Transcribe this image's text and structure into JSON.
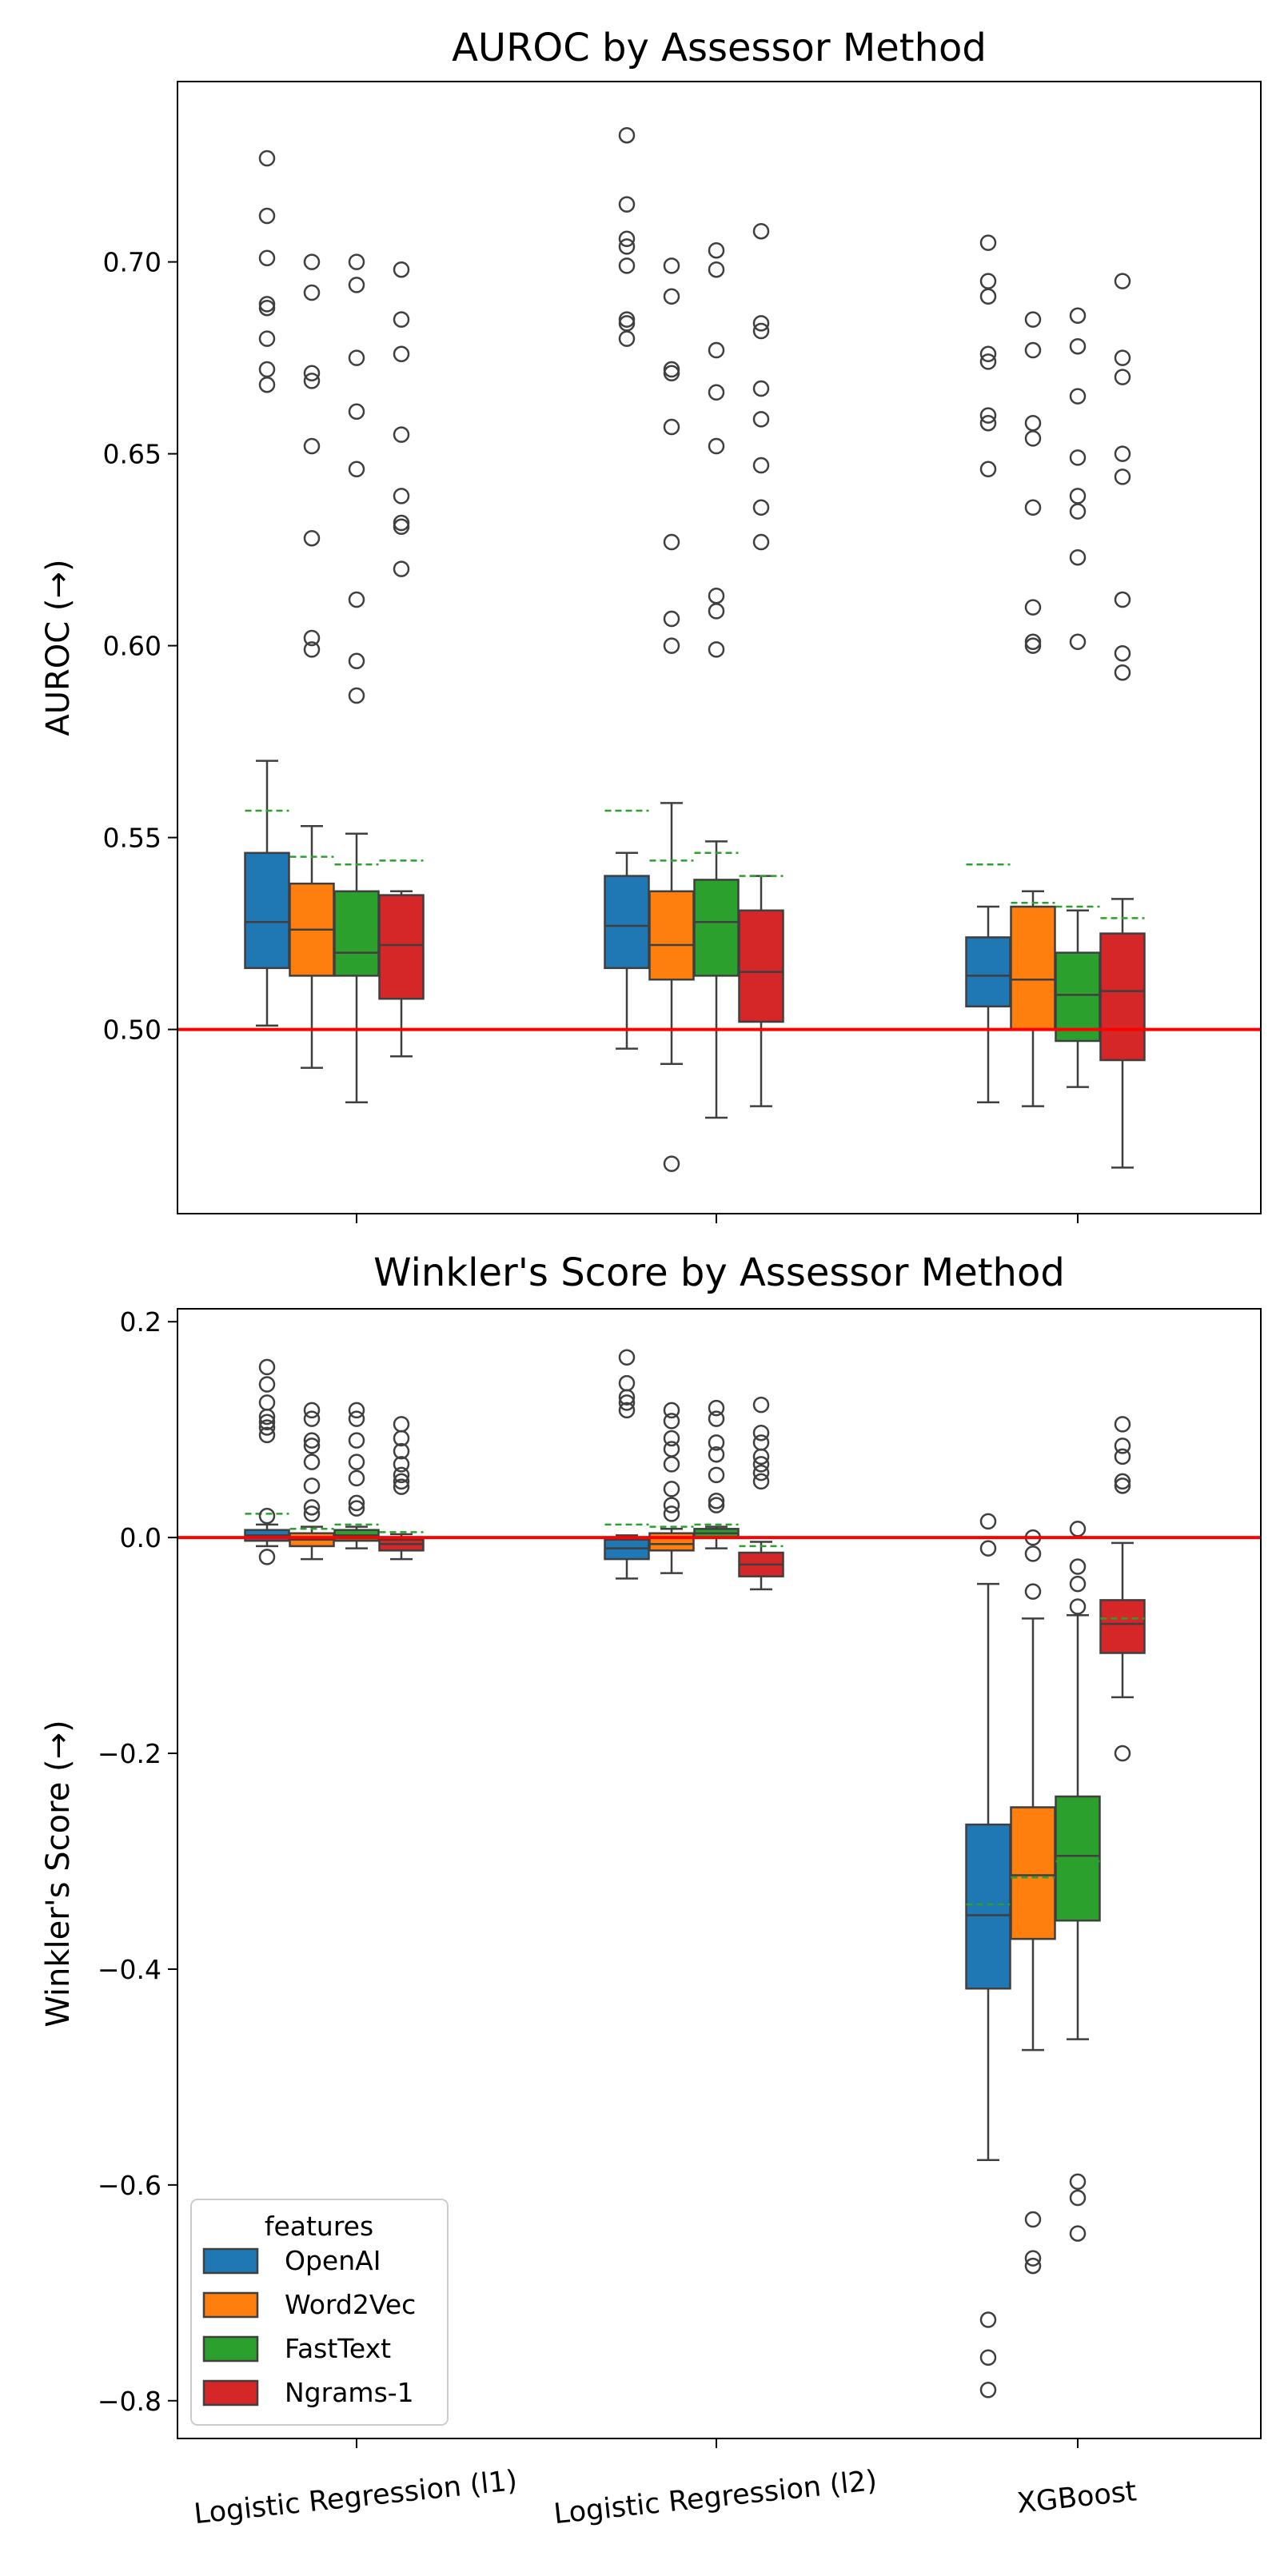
{
  "chart_data": [
    {
      "type": "box",
      "title": "AUROC by Assessor Method",
      "xlabel": "",
      "ylabel": "AUROC (→)",
      "ylim": [
        0.452,
        0.747
      ],
      "yticks": [
        0.5,
        0.55,
        0.6,
        0.65,
        0.7
      ],
      "ytick_labels": [
        "0.50",
        "0.55",
        "0.60",
        "0.65",
        "0.70"
      ],
      "reference_line": 0.5,
      "categories": [
        "Logistic Regression (l1)",
        "Logistic Regression (l2)",
        "XGBoost"
      ],
      "series": [
        {
          "name": "OpenAI",
          "color": "#1f77b4",
          "boxes": [
            {
              "whislo": 0.501,
              "q1": 0.516,
              "med": 0.528,
              "q3": 0.546,
              "whishi": 0.57,
              "mean": 0.557,
              "fliers": [
                0.727,
                0.712,
                0.701,
                0.689,
                0.688,
                0.68,
                0.672,
                0.668
              ]
            },
            {
              "whislo": 0.495,
              "q1": 0.516,
              "med": 0.527,
              "q3": 0.54,
              "whishi": 0.546,
              "mean": 0.557,
              "fliers": [
                0.733,
                0.715,
                0.706,
                0.704,
                0.699,
                0.685,
                0.684,
                0.68
              ]
            },
            {
              "whislo": 0.481,
              "q1": 0.506,
              "med": 0.514,
              "q3": 0.524,
              "whishi": 0.532,
              "mean": 0.543,
              "fliers": [
                0.705,
                0.695,
                0.691,
                0.676,
                0.674,
                0.66,
                0.658,
                0.646
              ]
            }
          ]
        },
        {
          "name": "Word2Vec",
          "color": "#ff7f0e",
          "boxes": [
            {
              "whislo": 0.49,
              "q1": 0.514,
              "med": 0.526,
              "q3": 0.538,
              "whishi": 0.553,
              "mean": 0.545,
              "fliers": [
                0.7,
                0.692,
                0.671,
                0.669,
                0.652,
                0.628,
                0.602,
                0.599
              ]
            },
            {
              "whislo": 0.491,
              "q1": 0.513,
              "med": 0.522,
              "q3": 0.536,
              "whishi": 0.559,
              "mean": 0.544,
              "fliers": [
                0.699,
                0.691,
                0.672,
                0.671,
                0.657,
                0.627,
                0.607,
                0.6,
                0.465
              ]
            },
            {
              "whislo": 0.48,
              "q1": 0.5,
              "med": 0.513,
              "q3": 0.532,
              "whishi": 0.536,
              "mean": 0.533,
              "fliers": [
                0.685,
                0.677,
                0.658,
                0.654,
                0.636,
                0.61,
                0.601,
                0.6
              ]
            }
          ]
        },
        {
          "name": "FastText",
          "color": "#2ca02c",
          "boxes": [
            {
              "whislo": 0.481,
              "q1": 0.514,
              "med": 0.52,
              "q3": 0.536,
              "whishi": 0.551,
              "mean": 0.543,
              "fliers": [
                0.7,
                0.694,
                0.675,
                0.661,
                0.646,
                0.612,
                0.596,
                0.587
              ]
            },
            {
              "whislo": 0.477,
              "q1": 0.514,
              "med": 0.528,
              "q3": 0.539,
              "whishi": 0.549,
              "mean": 0.546,
              "fliers": [
                0.703,
                0.698,
                0.677,
                0.666,
                0.652,
                0.613,
                0.609,
                0.599
              ]
            },
            {
              "whislo": 0.485,
              "q1": 0.497,
              "med": 0.509,
              "q3": 0.52,
              "whishi": 0.531,
              "mean": 0.532,
              "fliers": [
                0.686,
                0.678,
                0.665,
                0.649,
                0.639,
                0.635,
                0.623,
                0.601
              ]
            }
          ]
        },
        {
          "name": "Ngrams-1",
          "color": "#d62728",
          "boxes": [
            {
              "whislo": 0.493,
              "q1": 0.508,
              "med": 0.522,
              "q3": 0.535,
              "whishi": 0.536,
              "mean": 0.544,
              "fliers": [
                0.698,
                0.685,
                0.676,
                0.655,
                0.639,
                0.632,
                0.631,
                0.62
              ]
            },
            {
              "whislo": 0.48,
              "q1": 0.502,
              "med": 0.515,
              "q3": 0.531,
              "whishi": 0.54,
              "mean": 0.54,
              "fliers": [
                0.708,
                0.684,
                0.682,
                0.667,
                0.659,
                0.647,
                0.636,
                0.627
              ]
            },
            {
              "whislo": 0.464,
              "q1": 0.492,
              "med": 0.51,
              "q3": 0.525,
              "whishi": 0.534,
              "mean": 0.529,
              "fliers": [
                0.695,
                0.675,
                0.67,
                0.65,
                0.644,
                0.612,
                0.598,
                0.593
              ]
            }
          ]
        }
      ]
    },
    {
      "type": "box",
      "title": "Winkler's Score by Assessor Method",
      "xlabel": "",
      "ylabel": "Winkler's Score (→)",
      "ylim": [
        -0.835,
        0.212
      ],
      "yticks": [
        0.2,
        0.0,
        -0.2,
        -0.4,
        -0.6,
        -0.8
      ],
      "ytick_labels": [
        "0.2",
        "0.0",
        "−0.2",
        "−0.4",
        "−0.6",
        "−0.8"
      ],
      "reference_line": 0.0,
      "categories": [
        "Logistic Regression (l1)",
        "Logistic Regression (l2)",
        "XGBoost"
      ],
      "legend": {
        "title": "features",
        "position": "lower-left"
      },
      "series": [
        {
          "name": "OpenAI",
          "color": "#1f77b4",
          "boxes": [
            {
              "whislo": -0.008,
              "q1": -0.003,
              "med": 0.002,
              "q3": 0.007,
              "whishi": 0.012,
              "mean": 0.022,
              "fliers": [
                0.158,
                0.142,
                0.125,
                0.112,
                0.107,
                0.102,
                0.095,
                0.02,
                -0.018
              ]
            },
            {
              "whislo": -0.038,
              "q1": -0.02,
              "med": -0.01,
              "q3": -0.002,
              "whishi": 0.002,
              "mean": 0.012,
              "fliers": [
                0.167,
                0.143,
                0.13,
                0.125,
                0.118
              ]
            },
            {
              "whislo": -0.577,
              "q1": -0.418,
              "med": -0.35,
              "q3": -0.266,
              "whishi": -0.043,
              "mean": -0.34,
              "fliers": [
                0.015,
                -0.01,
                -0.725,
                -0.76,
                -0.79
              ]
            }
          ]
        },
        {
          "name": "Word2Vec",
          "color": "#ff7f0e",
          "boxes": [
            {
              "whislo": -0.02,
              "q1": -0.008,
              "med": -0.002,
              "q3": 0.004,
              "whishi": 0.01,
              "mean": 0.008,
              "fliers": [
                0.118,
                0.11,
                0.09,
                0.085,
                0.07,
                0.048,
                0.028,
                0.022
              ]
            },
            {
              "whislo": -0.033,
              "q1": -0.012,
              "med": -0.006,
              "q3": 0.004,
              "whishi": 0.008,
              "mean": 0.01,
              "fliers": [
                0.118,
                0.108,
                0.092,
                0.082,
                0.068,
                0.045,
                0.03,
                0.022
              ]
            },
            {
              "whislo": -0.475,
              "q1": -0.372,
              "med": -0.313,
              "q3": -0.25,
              "whishi": -0.075,
              "mean": -0.315,
              "fliers": [
                0.0,
                -0.015,
                -0.05,
                -0.632,
                -0.668,
                -0.675
              ]
            }
          ]
        },
        {
          "name": "FastText",
          "color": "#2ca02c",
          "boxes": [
            {
              "whislo": -0.01,
              "q1": -0.003,
              "med": 0.002,
              "q3": 0.007,
              "whishi": 0.01,
              "mean": 0.012,
              "fliers": [
                0.118,
                0.11,
                0.09,
                0.07,
                0.055,
                0.032,
                0.027
              ]
            },
            {
              "whislo": -0.01,
              "q1": 0.0,
              "med": 0.004,
              "q3": 0.008,
              "whishi": 0.01,
              "mean": 0.012,
              "fliers": [
                0.12,
                0.11,
                0.088,
                0.077,
                0.058,
                0.034,
                0.03
              ]
            },
            {
              "whislo": -0.465,
              "q1": -0.355,
              "med": -0.295,
              "q3": -0.24,
              "whishi": -0.072,
              "mean": -0.3,
              "fliers": [
                0.008,
                -0.027,
                -0.043,
                -0.064,
                -0.597,
                -0.612,
                -0.645
              ]
            }
          ]
        },
        {
          "name": "Ngrams-1",
          "color": "#d62728",
          "boxes": [
            {
              "whislo": -0.02,
              "q1": -0.012,
              "med": -0.006,
              "q3": -0.002,
              "whishi": 0.003,
              "mean": 0.005,
              "fliers": [
                0.105,
                0.092,
                0.08,
                0.068,
                0.058,
                0.052,
                0.047
              ]
            },
            {
              "whislo": -0.048,
              "q1": -0.036,
              "med": -0.025,
              "q3": -0.014,
              "whishi": -0.004,
              "mean": -0.008,
              "fliers": [
                0.123,
                0.097,
                0.088,
                0.075,
                0.068,
                0.06,
                0.052
              ]
            },
            {
              "whislo": -0.148,
              "q1": -0.107,
              "med": -0.08,
              "q3": -0.058,
              "whishi": -0.005,
              "mean": -0.075,
              "fliers": [
                0.105,
                0.085,
                0.075,
                0.052,
                0.048,
                -0.2
              ]
            }
          ]
        }
      ]
    }
  ]
}
